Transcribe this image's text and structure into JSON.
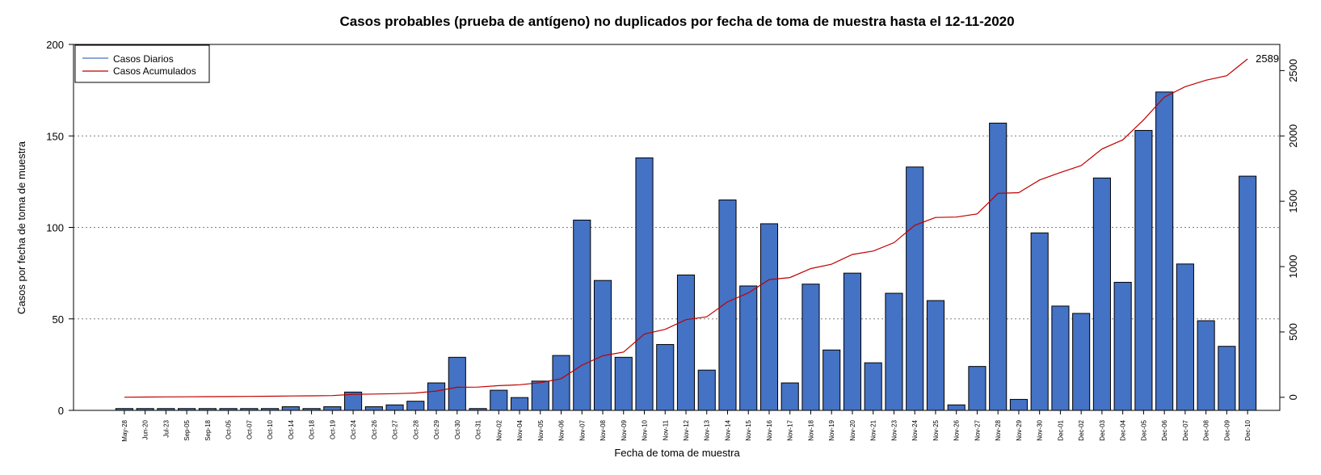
{
  "chart_data": {
    "type": "bar",
    "title": "Casos probables (prueba de antígeno) no duplicados por fecha de toma de muestra hasta el 12-11-2020",
    "xlabel": "Fecha de toma de muestra",
    "ylabel": "Casos por fecha de toma de muestra",
    "ylim": [
      0,
      200
    ],
    "y_ticks": [
      0,
      50,
      100,
      150,
      200
    ],
    "y2lim": [
      -100,
      2700
    ],
    "y2_ticks": [
      0,
      500,
      1000,
      1500,
      2000,
      2500
    ],
    "grid": "horizontal dotted",
    "legend_position": "top-left",
    "categories": [
      "May-28",
      "Jun-20",
      "Jul-23",
      "Sep-05",
      "Sep-18",
      "Oct-05",
      "Oct-07",
      "Oct-10",
      "Oct-14",
      "Oct-18",
      "Oct-19",
      "Oct-24",
      "Oct-26",
      "Oct-27",
      "Oct-28",
      "Oct-29",
      "Oct-30",
      "Oct-31",
      "Nov-02",
      "Nov-04",
      "Nov-05",
      "Nov-06",
      "Nov-07",
      "Nov-08",
      "Nov-09",
      "Nov-10",
      "Nov-11",
      "Nov-12",
      "Nov-13",
      "Nov-14",
      "Nov-15",
      "Nov-16",
      "Nov-17",
      "Nov-18",
      "Nov-19",
      "Nov-20",
      "Nov-21",
      "Nov-23",
      "Nov-24",
      "Nov-25",
      "Nov-26",
      "Nov-27",
      "Nov-28",
      "Nov-29",
      "Nov-30",
      "Dec-01",
      "Dec-02",
      "Dec-03",
      "Dec-04",
      "Dec-05",
      "Dec-06",
      "Dec-07",
      "Dec-08",
      "Dec-09",
      "Dec-10"
    ],
    "series": [
      {
        "name": "Casos Diarios",
        "type": "bar",
        "axis": "left",
        "color": "#4472c4",
        "values": [
          1,
          1,
          1,
          1,
          1,
          1,
          1,
          1,
          2,
          1,
          2,
          10,
          2,
          3,
          5,
          15,
          29,
          1,
          11,
          7,
          16,
          30,
          104,
          71,
          29,
          138,
          36,
          74,
          22,
          115,
          68,
          102,
          15,
          69,
          33,
          75,
          26,
          64,
          133,
          60,
          3,
          24,
          157,
          6,
          97,
          57,
          53,
          127,
          70,
          153,
          174,
          80,
          49,
          35,
          128
        ]
      },
      {
        "name": "Casos Acumulados",
        "type": "line",
        "axis": "right",
        "color": "#c00000",
        "values": [
          1,
          2,
          3,
          4,
          5,
          6,
          7,
          8,
          10,
          11,
          13,
          23,
          25,
          28,
          33,
          48,
          77,
          78,
          89,
          96,
          112,
          142,
          246,
          317,
          346,
          484,
          520,
          594,
          616,
          731,
          799,
          901,
          916,
          985,
          1018,
          1093,
          1119,
          1183,
          1316,
          1376,
          1379,
          1403,
          1560,
          1566,
          1663,
          1720,
          1773,
          1900,
          1970,
          2123,
          2297,
          2377,
          2426,
          2461,
          2589
        ]
      }
    ],
    "annotations": [
      {
        "text": "2589",
        "series": "Casos Acumulados",
        "at": "Dec-10"
      }
    ]
  }
}
